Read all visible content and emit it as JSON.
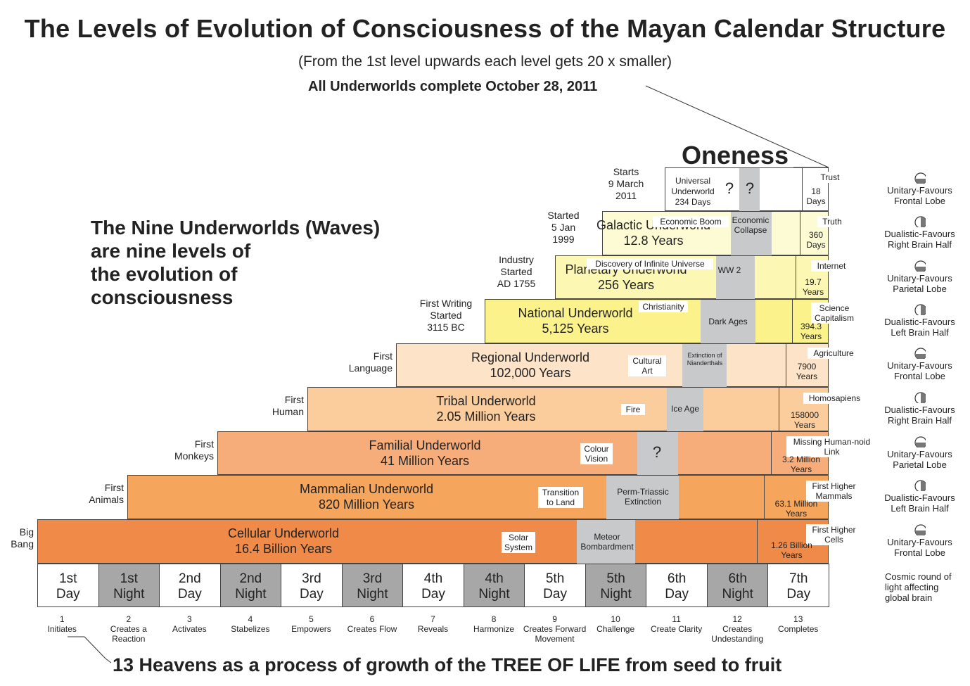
{
  "title": "The Levels of Evolution of Consciousness of the Mayan Calendar Structure",
  "subtitle": "(From the 1st level upwards each level gets 20 x smaller)",
  "completion": "All Underworlds complete October 28, 2011",
  "oneness": "Oneness",
  "headline": [
    "The Nine Underworlds (Waves)",
    "are nine levels of",
    "the evolution of",
    "consciousness"
  ],
  "footer": "13 Heavens as a process of growth of the TREE OF LIFE from seed to fruit",
  "colors": {
    "cellular": "#f08a48",
    "mammalian": "#f5a55c",
    "familial": "#f7ad7a",
    "tribal": "#fbcc9c",
    "regional": "#fde3c8",
    "national": "#fbf28c",
    "planetary": "#fcf8b4",
    "galactic": "#fdfbd4",
    "night": "#a7a7a7",
    "grey": "#c8c9cb"
  },
  "underworlds": [
    {
      "name": "Cellular Underworld",
      "duration": "16.4 Billion Years",
      "start": [
        "Big",
        "Bang"
      ],
      "events": [
        "Solar System",
        "Meteor Bombardment"
      ],
      "top": "1.26 Billion Years",
      "top_event": "First Higher Cells"
    },
    {
      "name": "Mammalian Underworld",
      "duration": "820 Million Years",
      "start": [
        "First",
        "Animals"
      ],
      "events": [
        "Transition to Land",
        "Perm-Triassic Extinction"
      ],
      "top": "63.1 Million Years",
      "top_event": "First Higher Mammals"
    },
    {
      "name": "Familial Underworld",
      "duration": "41 Million Years",
      "start": [
        "First",
        "Monkeys"
      ],
      "events": [
        "Colour Vision",
        "?"
      ],
      "top": "3.2 Million Years",
      "top_event": "Missing Human-noid Link"
    },
    {
      "name": "Tribal Underworld",
      "duration": "2.05 Million Years",
      "start": [
        "First",
        "Human"
      ],
      "events": [
        "Fire",
        "Ice Age"
      ],
      "top": "158000 Years",
      "top_event": "Homosapiens"
    },
    {
      "name": "Regional Underworld",
      "duration": "102,000 Years",
      "start": [
        "First",
        "Language"
      ],
      "events": [
        "Cultural Art",
        "Extinction of Nianderthals"
      ],
      "top": "7900 Years",
      "top_event": "Agriculture"
    },
    {
      "name": "National Underworld",
      "duration": "5,125 Years",
      "start": [
        "First Writing",
        "Started",
        "3115 BC"
      ],
      "events": [
        "Christianity",
        "Dark Ages"
      ],
      "top": "394.3 Years",
      "top_event": "Science Capitalism"
    },
    {
      "name": "Planetary Underworld",
      "duration": "256  Years",
      "start": [
        "Industry",
        "Started",
        "AD 1755"
      ],
      "events": [
        "Discovery of Infinite Universe",
        "WW 2"
      ],
      "top": "19.7 Years",
      "top_event": "Internet"
    },
    {
      "name": "Galactic Underworld",
      "duration": "12.8 Years",
      "start": [
        "Started",
        "5 Jan",
        "1999"
      ],
      "events": [
        "Economic Boom",
        "Economic Collapse"
      ],
      "top": "360 Days",
      "top_event": "Truth"
    },
    {
      "name": "Universal Underworld",
      "duration": "234 Days",
      "start": [
        "Starts",
        "9 March",
        "2011"
      ],
      "events": [
        "?",
        "?"
      ],
      "top": "18 Days",
      "top_event": "Trust"
    }
  ],
  "days": [
    {
      "num": "1st",
      "kind": "Day",
      "night": false
    },
    {
      "num": "1st",
      "kind": "Night",
      "night": true
    },
    {
      "num": "2nd",
      "kind": "Day",
      "night": false
    },
    {
      "num": "2nd",
      "kind": "Night",
      "night": true
    },
    {
      "num": "3rd",
      "kind": "Day",
      "night": false
    },
    {
      "num": "3rd",
      "kind": "Night",
      "night": true
    },
    {
      "num": "4th",
      "kind": "Day",
      "night": false
    },
    {
      "num": "4th",
      "kind": "Night",
      "night": true
    },
    {
      "num": "5th",
      "kind": "Day",
      "night": false
    },
    {
      "num": "5th",
      "kind": "Night",
      "night": true
    },
    {
      "num": "6th",
      "kind": "Day",
      "night": false
    },
    {
      "num": "6th",
      "kind": "Night",
      "night": true
    },
    {
      "num": "7th",
      "kind": "Day",
      "night": false
    }
  ],
  "heavens": [
    {
      "n": "1",
      "text": "Initiates"
    },
    {
      "n": "2",
      "text": "Creates a Reaction"
    },
    {
      "n": "3",
      "text": "Activates"
    },
    {
      "n": "4",
      "text": "Stabelizes"
    },
    {
      "n": "5",
      "text": "Empowers"
    },
    {
      "n": "6",
      "text": "Creates Flow"
    },
    {
      "n": "7",
      "text": "Reveals"
    },
    {
      "n": "8",
      "text": "Harmonize"
    },
    {
      "n": "9",
      "text": "Creates Forward Movement"
    },
    {
      "n": "10",
      "text": "Challenge"
    },
    {
      "n": "11",
      "text": "Create Clarity"
    },
    {
      "n": "12",
      "text": "Creates Undestanding"
    },
    {
      "n": "13",
      "text": "Completes"
    }
  ],
  "mind": [
    {
      "icon": "horizontal-split-brain-icon",
      "text": "Unitary-Favours Frontal Lobe"
    },
    {
      "icon": "vertical-split-brain-icon",
      "text": "Dualistic-Favours Right Brain Half"
    },
    {
      "icon": "horizontal-split-brain-icon",
      "text": "Unitary-Favours Parietal Lobe"
    },
    {
      "icon": "vertical-split-brain-icon",
      "text": "Dualistic-Favours Left Brain Half"
    },
    {
      "icon": "horizontal-split-brain-icon",
      "text": "Unitary-Favours Frontal Lobe"
    },
    {
      "icon": "vertical-split-brain-icon",
      "text": "Dualistic-Favours Right Brain Half"
    },
    {
      "icon": "horizontal-split-brain-icon",
      "text": "Unitary-Favours Parietal Lobe"
    },
    {
      "icon": "vertical-split-brain-icon",
      "text": "Dualistic-Favours Left Brain Half"
    },
    {
      "icon": "horizontal-split-brain-icon",
      "text": "Unitary-Favours Frontal Lobe"
    }
  ],
  "cosmic": "Cosmic round of light affecting global brain"
}
